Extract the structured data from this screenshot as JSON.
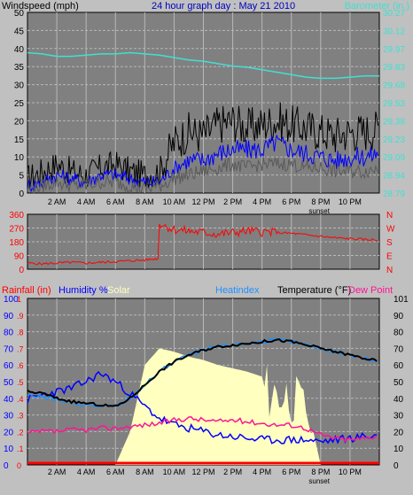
{
  "title": "24 hour graph day : May 21 2010",
  "colors": {
    "background": "#c0c0c0",
    "plot_bg": "#808080",
    "grid": "#b8b8b8",
    "wind_gust": "#000000",
    "wind_avg": "#0000ff",
    "wind_low": "#5a5a5a",
    "barometer": "#40e0d0",
    "direction": "#ff0000",
    "rain": "#ff0000",
    "humidity": "#0000ff",
    "solar": "#ffffc0",
    "heatindex": "#1e90ff",
    "temperature": "#000000",
    "dewpoint": "#ff1493",
    "title": "#0000c0"
  },
  "time_ticks": [
    "2 AM",
    "4 AM",
    "6 AM",
    "8 AM",
    "10 AM",
    "12 PM",
    "2 PM",
    "4 PM",
    "6 PM",
    "8 PM",
    "10 PM"
  ],
  "sunset_label": "sunset",
  "chart_data": [
    {
      "type": "line",
      "id": "wind",
      "title": "24 hour graph day : May 21 2010",
      "ylabel_left": "Windspeed (mph)",
      "ylabel_right": "Barometer (in.)",
      "ylim": [
        0,
        50
      ],
      "y_ticks_left": [
        "0",
        "5",
        "10",
        "15",
        "20",
        "25",
        "30",
        "35",
        "40",
        "45",
        "50"
      ],
      "y_ticks_right": [
        "28.79",
        "28.94",
        "29.09",
        "29.23",
        "29.38",
        "29.53",
        "29.68",
        "29.83",
        "29.97",
        "30.12",
        "30.27"
      ],
      "x_hours": [
        0,
        1,
        2,
        3,
        4,
        5,
        6,
        7,
        8,
        9,
        10,
        11,
        12,
        13,
        14,
        15,
        16,
        17,
        18,
        19,
        20,
        21,
        22,
        23,
        24
      ],
      "series": [
        {
          "name": "gust",
          "values": [
            4,
            6,
            8,
            6,
            5,
            7,
            8,
            6,
            5,
            6,
            14,
            17,
            16,
            19,
            20,
            18,
            19,
            20,
            19,
            18,
            17,
            16,
            17,
            17,
            18
          ]
        },
        {
          "name": "avg",
          "values": [
            2,
            3,
            5,
            4,
            3,
            5,
            5,
            4,
            3,
            3,
            7,
            9,
            9,
            11,
            12,
            12,
            12,
            14,
            12,
            11,
            10,
            9,
            10,
            10,
            11
          ]
        },
        {
          "name": "low",
          "values": [
            1,
            2,
            3,
            2,
            2,
            3,
            3,
            2,
            1,
            2,
            4,
            5,
            6,
            7,
            8,
            7,
            8,
            8,
            8,
            7,
            7,
            6,
            6,
            6,
            7
          ]
        },
        {
          "name": "barometer",
          "values": [
            29.94,
            29.93,
            29.91,
            29.91,
            29.92,
            29.93,
            29.93,
            29.94,
            29.93,
            29.92,
            29.9,
            29.88,
            29.87,
            29.85,
            29.83,
            29.82,
            29.8,
            29.78,
            29.76,
            29.74,
            29.73,
            29.73,
            29.74,
            29.75,
            29.75
          ]
        }
      ]
    },
    {
      "type": "line",
      "id": "direction",
      "ylim": [
        0,
        360
      ],
      "y_ticks_left": [
        "0",
        "90",
        "180",
        "270",
        "360"
      ],
      "y_ticks_right": [
        "N",
        "E",
        "S",
        "W",
        "N"
      ],
      "x_hours": [
        0,
        1,
        2,
        3,
        4,
        5,
        6,
        7,
        8,
        8.9,
        9,
        10,
        11,
        12,
        13,
        14,
        15,
        16,
        17,
        18,
        19,
        20,
        21,
        22,
        23,
        24
      ],
      "series": [
        {
          "name": "direction",
          "values": [
            40,
            35,
            40,
            45,
            40,
            45,
            50,
            55,
            60,
            70,
            300,
            260,
            250,
            240,
            230,
            240,
            250,
            245,
            240,
            235,
            225,
            215,
            205,
            200,
            195,
            190
          ]
        }
      ]
    },
    {
      "type": "line",
      "id": "temp",
      "ylabel_left": "Rainfall (in)",
      "legend": [
        "Rainfall (in)",
        "Humidity %",
        "Solar",
        "Heatindex",
        "Temperature (°F)",
        "Dew Point"
      ],
      "ylim": [
        0,
        100
      ],
      "y_ticks_humidity": [
        "0",
        "10",
        "20",
        "30",
        "40",
        "50",
        "60",
        "70",
        "80",
        "90",
        "100"
      ],
      "y_ticks_rain": [
        "0",
        ".1",
        ".2",
        ".3",
        ".4",
        ".5",
        ".6",
        ".7",
        ".8",
        ".9",
        "1"
      ],
      "y_ticks_right": [
        "0",
        "10",
        "20",
        "30",
        "40",
        "50",
        "60",
        "70",
        "80",
        "90",
        "101"
      ],
      "x_hours": [
        0,
        1,
        2,
        3,
        4,
        5,
        6,
        7,
        8,
        9,
        10,
        11,
        12,
        13,
        14,
        15,
        16,
        17,
        18,
        19,
        20,
        21,
        22,
        23,
        24
      ],
      "series": [
        {
          "name": "Temperature",
          "values": [
            44,
            43,
            40,
            38,
            37,
            36,
            35,
            40,
            48,
            56,
            62,
            66,
            69,
            71,
            72,
            73,
            74,
            75,
            74,
            72,
            70,
            68,
            66,
            64,
            62
          ]
        },
        {
          "name": "Humidity",
          "values": [
            39,
            42,
            44,
            46,
            50,
            55,
            50,
            43,
            35,
            28,
            24,
            22,
            20,
            18,
            17,
            16,
            15,
            15,
            15,
            15,
            14,
            15,
            16,
            17,
            18
          ]
        },
        {
          "name": "Heatindex",
          "values": [
            42,
            41,
            39,
            37,
            36,
            35,
            35,
            40,
            48,
            56,
            62,
            66,
            69,
            71,
            72,
            73,
            74,
            75,
            74,
            72,
            70,
            68,
            66,
            64,
            62
          ]
        },
        {
          "name": "Dew Point",
          "values": [
            19,
            20,
            20,
            21,
            21,
            22,
            22,
            23,
            24,
            25,
            27,
            28,
            27,
            26,
            27,
            26,
            25,
            24,
            24,
            22,
            18,
            16,
            15,
            16,
            18
          ]
        },
        {
          "name": "Solar",
          "values": [
            0,
            0,
            0,
            0,
            0,
            0,
            0,
            20,
            60,
            70,
            68,
            65,
            63,
            60,
            58,
            56,
            53,
            50,
            48,
            40,
            0,
            0,
            0,
            0,
            0
          ]
        },
        {
          "name": "Rainfall",
          "values": [
            0,
            0,
            0,
            0,
            0,
            0,
            0,
            0,
            0,
            0,
            0,
            0,
            0,
            0,
            0,
            0,
            0,
            0,
            0,
            0,
            0,
            0,
            0,
            0,
            0
          ]
        }
      ]
    }
  ]
}
